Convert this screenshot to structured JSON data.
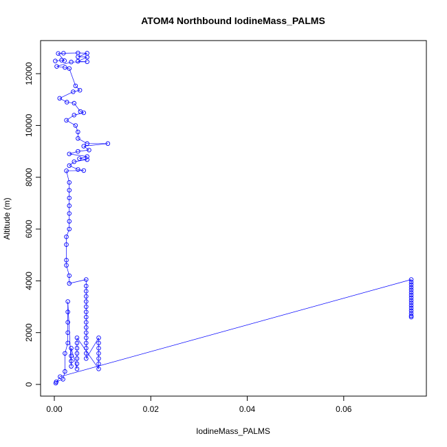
{
  "chart_data": {
    "type": "scatter",
    "title": "ATOM4 Northbound IodineMass_PALMS",
    "xlabel": "IodineMass_PALMS",
    "ylabel": "Altitude (m)",
    "xlim": [
      0,
      0.074
    ],
    "ylim": [
      0,
      12800
    ],
    "x_ticks": [
      0.0,
      0.02,
      0.04,
      0.06
    ],
    "x_tick_labels": [
      "0.00",
      "0.02",
      "0.04",
      "0.06"
    ],
    "y_ticks": [
      0,
      2000,
      4000,
      6000,
      8000,
      10000,
      12000
    ],
    "y_tick_labels": [
      "0",
      "2000",
      "4000",
      "6000",
      "8000",
      "10000",
      "12000"
    ],
    "grid": false,
    "legend": "none",
    "colors": {
      "points": "#0000ff",
      "lines": "#0000ff",
      "axes": "#000000"
    },
    "series": [
      {
        "points": [
          [
            0.0002,
            12490
          ],
          [
            0.0015,
            12520
          ],
          [
            0.0021,
            12500
          ],
          [
            0.0008,
            12780
          ],
          [
            0.0019,
            12790
          ],
          [
            0.0049,
            12800
          ],
          [
            0.0068,
            12790
          ],
          [
            0.0049,
            12650
          ],
          [
            0.0068,
            12640
          ],
          [
            0.0049,
            12480
          ],
          [
            0.0068,
            12460
          ],
          [
            0.0035,
            12450
          ],
          [
            0.0005,
            12280
          ],
          [
            0.0022,
            12240
          ],
          [
            0.0031,
            12200
          ],
          [
            0.0044,
            11530
          ],
          [
            0.0053,
            11360
          ],
          [
            0.0039,
            11300
          ],
          [
            0.0011,
            11050
          ],
          [
            0.0026,
            10900
          ],
          [
            0.0041,
            10860
          ],
          [
            0.0054,
            10540
          ],
          [
            0.0061,
            10490
          ],
          [
            0.0041,
            10400
          ],
          [
            0.0025,
            10200
          ],
          [
            0.0044,
            10000
          ],
          [
            0.0049,
            9750
          ],
          [
            0.0049,
            9500
          ],
          [
            0.0068,
            9300
          ],
          [
            0.0111,
            9300
          ],
          [
            0.0061,
            9200
          ],
          [
            0.0072,
            9050
          ],
          [
            0.0049,
            9000
          ],
          [
            0.0031,
            8900
          ],
          [
            0.0068,
            8800
          ],
          [
            0.0052,
            8720
          ],
          [
            0.0068,
            8680
          ],
          [
            0.0041,
            8600
          ],
          [
            0.0031,
            8450
          ],
          [
            0.0049,
            8300
          ],
          [
            0.0061,
            8260
          ],
          [
            0.0025,
            8250
          ],
          [
            0.0031,
            7800
          ],
          [
            0.0031,
            7500
          ],
          [
            0.0031,
            7200
          ],
          [
            0.0031,
            6900
          ],
          [
            0.0031,
            6600
          ],
          [
            0.0031,
            6300
          ],
          [
            0.0031,
            6000
          ],
          [
            0.0025,
            5700
          ],
          [
            0.0025,
            5400
          ],
          [
            0.0025,
            4800
          ],
          [
            0.0025,
            4600
          ],
          [
            0.0031,
            4200
          ],
          [
            0.0031,
            3900
          ],
          [
            0.0066,
            4050
          ],
          [
            0.0066,
            3800
          ],
          [
            0.0066,
            3600
          ],
          [
            0.0066,
            3400
          ],
          [
            0.0066,
            3200
          ],
          [
            0.0066,
            3000
          ],
          [
            0.0066,
            2800
          ],
          [
            0.0066,
            2600
          ],
          [
            0.0066,
            2400
          ],
          [
            0.0066,
            2200
          ],
          [
            0.0066,
            2000
          ],
          [
            0.0066,
            1800
          ],
          [
            0.0066,
            1600
          ],
          [
            0.0066,
            1400
          ],
          [
            0.0066,
            1200
          ],
          [
            0.0066,
            1000
          ],
          [
            0.0092,
            1800
          ],
          [
            0.0092,
            1600
          ],
          [
            0.0092,
            1400
          ],
          [
            0.0092,
            1200
          ],
          [
            0.0092,
            1000
          ],
          [
            0.0092,
            800
          ],
          [
            0.0092,
            600
          ],
          [
            0.0047,
            1800
          ],
          [
            0.0047,
            1600
          ],
          [
            0.0047,
            1400
          ],
          [
            0.0047,
            1200
          ],
          [
            0.0047,
            1000
          ],
          [
            0.0047,
            800
          ],
          [
            0.0047,
            600
          ],
          [
            0.0035,
            1400
          ],
          [
            0.0035,
            1100
          ],
          [
            0.0035,
            900
          ],
          [
            0.0035,
            700
          ],
          [
            0.0028,
            3200
          ],
          [
            0.0028,
            2800
          ],
          [
            0.0028,
            2400
          ],
          [
            0.0028,
            2000
          ],
          [
            0.0028,
            1600
          ],
          [
            0.0022,
            1200
          ],
          [
            0.0022,
            500
          ],
          [
            0.0018,
            200
          ],
          [
            0.0004,
            100
          ],
          [
            0.0003,
            50
          ],
          [
            0.0012,
            300
          ],
          [
            0.074,
            4050
          ],
          [
            0.074,
            3950
          ],
          [
            0.074,
            3850
          ],
          [
            0.074,
            3750
          ],
          [
            0.074,
            3650
          ],
          [
            0.074,
            3550
          ],
          [
            0.074,
            3450
          ],
          [
            0.074,
            3350
          ],
          [
            0.074,
            3250
          ],
          [
            0.074,
            3150
          ],
          [
            0.074,
            3050
          ],
          [
            0.074,
            2950
          ],
          [
            0.074,
            2850
          ],
          [
            0.074,
            2750
          ],
          [
            0.074,
            2650
          ],
          [
            0.074,
            2600
          ]
        ]
      }
    ]
  }
}
